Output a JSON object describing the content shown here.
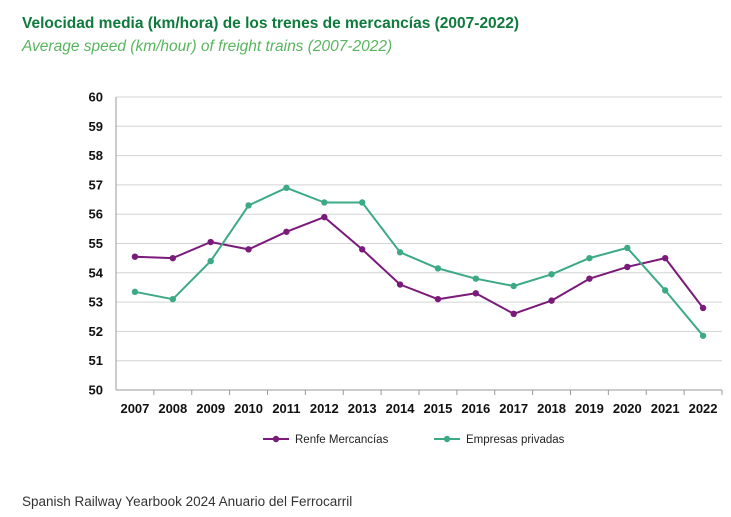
{
  "title": "Velocidad media (km/hora) de los trenes de mercancías (2007-2022)",
  "subtitle": "Average speed (km/hour) of freight trains (2007-2022)",
  "footer": "Spanish Railway Yearbook  2024 Anuario del Ferrocarril",
  "chart_data": {
    "type": "line",
    "x": [
      "2007",
      "2008",
      "2009",
      "2010",
      "2011",
      "2012",
      "2013",
      "2014",
      "2015",
      "2016",
      "2017",
      "2018",
      "2019",
      "2020",
      "2021",
      "2022"
    ],
    "ylim": [
      50,
      60
    ],
    "yticks": [
      50,
      51,
      52,
      53,
      54,
      55,
      56,
      57,
      58,
      59,
      60
    ],
    "grid": "horizontal",
    "legend_position": "bottom",
    "series": [
      {
        "name": "Renfe Mercancías",
        "color": "#7a1a7a",
        "values": [
          54.55,
          54.5,
          55.05,
          54.8,
          55.4,
          55.9,
          54.8,
          53.6,
          53.1,
          53.3,
          52.6,
          53.05,
          53.8,
          54.2,
          54.5,
          52.8
        ]
      },
      {
        "name": "Empresas privadas",
        "color": "#3daa85",
        "values": [
          53.35,
          53.1,
          54.4,
          56.3,
          56.9,
          56.4,
          56.4,
          54.7,
          54.15,
          53.8,
          53.55,
          53.95,
          54.5,
          54.85,
          53.4,
          51.85
        ]
      }
    ]
  }
}
